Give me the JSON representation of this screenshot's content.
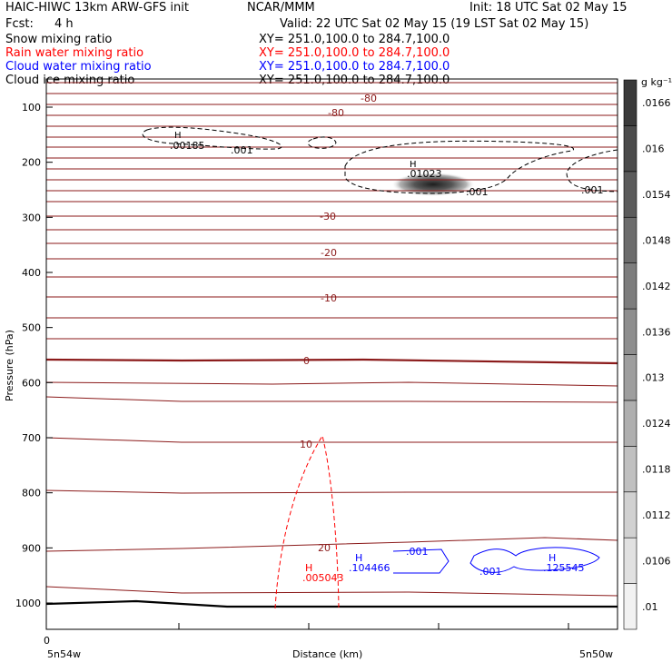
{
  "header": {
    "title_left": "HAIC-HIWC 13km ARW-GFS init",
    "title_center": "NCAR/MMM",
    "init": "Init: 18 UTC Sat 02 May 15",
    "fcst_label": "Fcst:",
    "fcst_value": "4 h",
    "valid": "Valid: 22 UTC Sat 02 May 15 (19 LST Sat 02 May 15)"
  },
  "fields": [
    {
      "name": "Snow mixing ratio",
      "xy": "XY= 251.0,100.0 to 284.7,100.0",
      "color": "#000000"
    },
    {
      "name": "Rain water mixing ratio",
      "xy": "XY= 251.0,100.0 to 284.7,100.0",
      "color": "#ff0000"
    },
    {
      "name": "Cloud water mixing ratio",
      "xy": "XY= 251.0,100.0 to 284.7,100.0",
      "color": "#0000ff"
    },
    {
      "name": "Cloud ice mixing ratio",
      "xy": "XY= 251.0,100.0 to 284.7,100.0",
      "color": "#000000"
    }
  ],
  "chart_data": {
    "type": "contour",
    "ylabel": "Pressure (hPa)",
    "xlabel": "Distance (km)",
    "y_ticks": [
      100,
      200,
      300,
      400,
      500,
      600,
      700,
      800,
      900,
      1000
    ],
    "ylim": [
      1050,
      50
    ],
    "x_tick_label": "0",
    "x_left_label": "5n54w",
    "x_right_label": "5n50w",
    "colorbar": {
      "unit": "g kg⁻¹",
      "labels": [
        ".01",
        ".0106",
        ".0112",
        ".0118",
        ".0124",
        ".013",
        ".0136",
        ".0142",
        ".0148",
        ".0154",
        ".016",
        ".0166"
      ]
    },
    "temperature_labels": [
      "-80",
      "-80",
      "-30",
      "-20",
      "-10",
      "0",
      "10",
      "20"
    ],
    "snow_labels": [
      "H",
      ".00185",
      ".001",
      "H",
      ".01023",
      ".001",
      ".001"
    ],
    "rain_labels": [
      "H",
      ".005043"
    ],
    "cloud_water_labels": [
      "H",
      ".104466",
      ".001",
      "H",
      ".125545",
      ".001"
    ],
    "colors": {
      "temperature": "#8b1a1a",
      "rain": "#ff0000",
      "cloud_water": "#0000ff",
      "snow": "#000000"
    }
  }
}
